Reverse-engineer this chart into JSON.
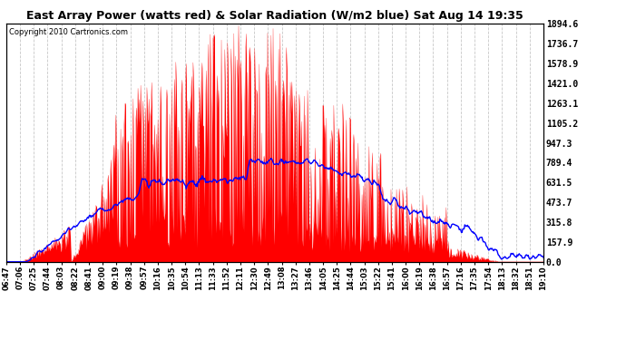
{
  "title": "East Array Power (watts red) & Solar Radiation (W/m2 blue) Sat Aug 14 19:35",
  "copyright_text": "Copyright 2010 Cartronics.com",
  "y_ticks": [
    0.0,
    157.9,
    315.8,
    473.7,
    631.5,
    789.4,
    947.3,
    1105.2,
    1263.1,
    1421.0,
    1578.9,
    1736.7,
    1894.6
  ],
  "y_max": 1894.6,
  "y_min": 0.0,
  "background_color": "#ffffff",
  "grid_color": "#c8c8c8",
  "red_color": "#ff0000",
  "blue_color": "#0000ff",
  "x_labels": [
    "06:47",
    "07:06",
    "07:25",
    "07:44",
    "08:03",
    "08:22",
    "08:41",
    "09:00",
    "09:19",
    "09:38",
    "09:57",
    "10:16",
    "10:35",
    "10:54",
    "11:13",
    "11:33",
    "11:52",
    "12:11",
    "12:30",
    "12:49",
    "13:08",
    "13:27",
    "13:46",
    "14:05",
    "14:25",
    "14:44",
    "15:03",
    "15:22",
    "15:41",
    "16:00",
    "16:19",
    "16:38",
    "16:57",
    "17:16",
    "17:35",
    "17:54",
    "18:13",
    "18:32",
    "18:51",
    "19:10"
  ]
}
